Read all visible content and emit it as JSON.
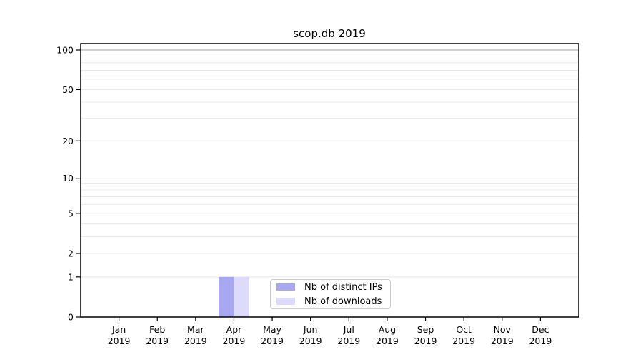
{
  "chart_data": {
    "type": "bar",
    "title": "scop.db 2019",
    "categories": [
      "Jan",
      "Feb",
      "Mar",
      "Apr",
      "May",
      "Jun",
      "Jul",
      "Aug",
      "Sep",
      "Oct",
      "Nov",
      "Dec"
    ],
    "year_label": "2019",
    "series": [
      {
        "name": "Nb of distinct IPs",
        "color": "#a8a8f2",
        "values": [
          0,
          0,
          0,
          1,
          0,
          0,
          0,
          0,
          0,
          0,
          0,
          0
        ]
      },
      {
        "name": "Nb of downloads",
        "color": "#dcdcfa",
        "values": [
          0,
          0,
          0,
          1,
          0,
          0,
          0,
          0,
          0,
          0,
          0,
          0
        ]
      }
    ],
    "y_axis": {
      "scale": "log1p",
      "range": [
        0,
        100
      ],
      "major_ticks": [
        0,
        1,
        2,
        5,
        10,
        20,
        50,
        100
      ],
      "minor_gridlines": [
        3,
        4,
        6,
        7,
        8,
        9,
        30,
        40,
        60,
        70,
        80,
        90
      ]
    },
    "x_axis": {
      "tick_label_format": "Month over Year, two lines"
    },
    "legend": {
      "position": "inside-bottom-center"
    },
    "grid": {
      "on": true,
      "minor_color": "#e8e8e8",
      "top_line_color": "#bfbfbf"
    },
    "bar_width_fraction": 0.4,
    "colors": {
      "spine": "#000000",
      "text": "#000000"
    }
  }
}
